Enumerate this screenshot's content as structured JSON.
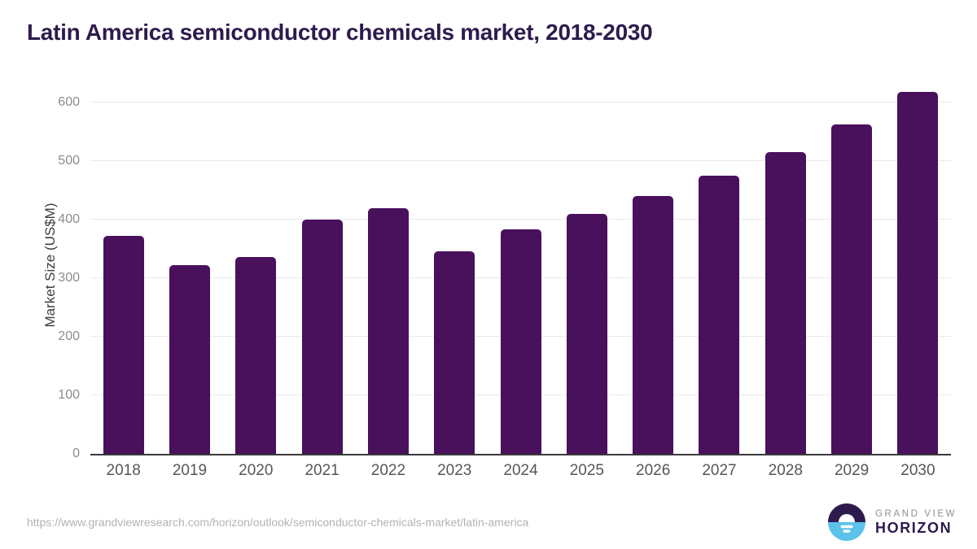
{
  "title": "Latin America semiconductor chemicals market, 2018-2030",
  "chart_data": {
    "type": "bar",
    "title": "Latin America semiconductor chemicals market, 2018-2030",
    "categories": [
      "2018",
      "2019",
      "2020",
      "2021",
      "2022",
      "2023",
      "2024",
      "2025",
      "2026",
      "2027",
      "2028",
      "2029",
      "2030"
    ],
    "values": [
      373,
      323,
      337,
      400,
      420,
      346,
      383,
      410,
      440,
      476,
      516,
      563,
      618
    ],
    "series_name": "Market Size",
    "xlabel": "",
    "ylabel": "Market Size (US$M)",
    "ylim": [
      0,
      645
    ],
    "yticks": [
      0,
      100,
      200,
      300,
      400,
      500,
      600
    ],
    "grid": "horizontal-only",
    "legend": "none",
    "bar_corner_radius": "rounded-top"
  },
  "colors": {
    "title": "#2d1b4e",
    "bar": "#49105c",
    "gridline": "#e9e9e9",
    "axis_line": "#3a3a3a",
    "y_tick_label": "#8c8c8c",
    "x_tick_label": "#565656",
    "axis_title": "#3d3d3d",
    "url_text": "#b3b3b3",
    "logo_dark": "#2d1b4e",
    "logo_blue": "#5bc2e9",
    "logo_gray": "#8f8f8f"
  },
  "footer": {
    "source_url": "https://www.grandviewresearch.com/horizon/outlook/semiconductor-chemicals-market/latin-america",
    "logo": {
      "top_text": "GRAND VIEW",
      "bottom_text": "HORIZON"
    }
  }
}
